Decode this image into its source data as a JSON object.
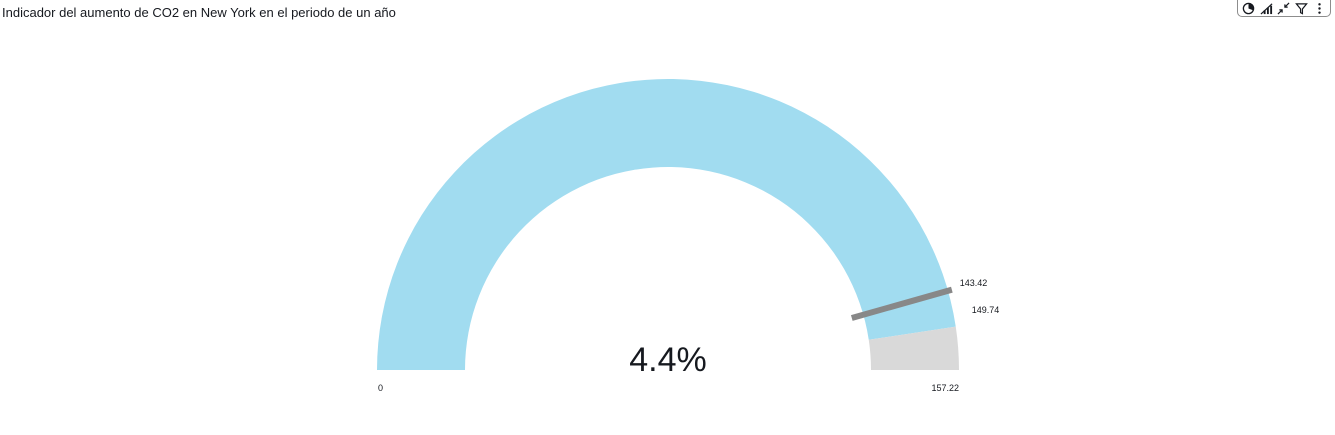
{
  "header": {
    "title": "Indicador del aumento de CO2 en New York en el periodo de un año"
  },
  "toolbar": {
    "items": [
      {
        "name": "focus-icon"
      },
      {
        "name": "chart-type-icon"
      },
      {
        "name": "collapse-icon"
      },
      {
        "name": "filter-icon"
      },
      {
        "name": "more-menu-icon"
      }
    ]
  },
  "chart_data": {
    "type": "gauge",
    "title": "Indicador del aumento de CO2 en New York en el periodo de un año",
    "min": 0,
    "max": 157.22,
    "value": 149.74,
    "target": 143.42,
    "center_label": "4.4%",
    "labels": {
      "min": "0",
      "max": "157.22",
      "value": "149.74",
      "target": "143.42"
    },
    "colors": {
      "fill": "#a1dcf0",
      "remainder": "#d9d9d9",
      "target": "#888888",
      "text": "#16191f"
    }
  }
}
